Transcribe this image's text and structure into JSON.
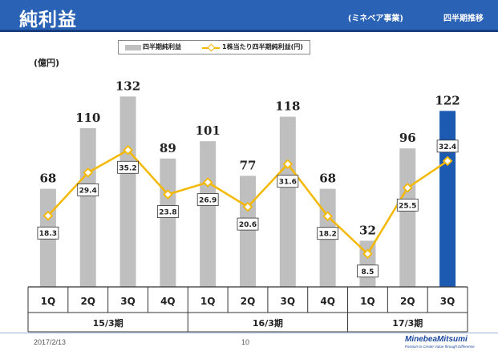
{
  "header": {
    "title": "純利益",
    "segment": "(ミネベア事業)",
    "trend": "四半期推移"
  },
  "unit": "(億円)",
  "legend": {
    "bar_label": "四半期純利益",
    "line_label": "1株当たり四半期純利益(円)"
  },
  "colors": {
    "bar": "#bfbfbf",
    "bar_highlight": "#1c5ab2",
    "line": "#f5b800",
    "header": "#2a62b6"
  },
  "chart_data": {
    "type": "bar",
    "title": "純利益",
    "ylabel": "(億円)",
    "categories": [
      "1Q",
      "2Q",
      "3Q",
      "4Q",
      "1Q",
      "2Q",
      "3Q",
      "4Q",
      "1Q",
      "2Q",
      "3Q"
    ],
    "groups": [
      {
        "label": "15/3期",
        "count": 4
      },
      {
        "label": "16/3期",
        "count": 4
      },
      {
        "label": "17/3期",
        "count": 3
      }
    ],
    "highlight_index": 10,
    "series": [
      {
        "name": "四半期純利益",
        "type": "bar",
        "values": [
          68,
          110,
          132,
          89,
          101,
          77,
          118,
          68,
          32,
          96,
          122
        ]
      },
      {
        "name": "1株当たり四半期純利益(円)",
        "type": "line",
        "values": [
          18.3,
          29.4,
          35.2,
          23.8,
          26.9,
          20.6,
          31.6,
          18.2,
          8.5,
          25.5,
          32.4
        ]
      }
    ],
    "ylim": [
      0,
      140
    ],
    "line_ylim": [
      0,
      50
    ],
    "grid": false,
    "legend_position": "top-center"
  },
  "footer": {
    "date": "2017/2/13",
    "page": "10",
    "logo": "MinebeaMitsumi",
    "logo_tagline": "Passion to Create Value through Difference"
  }
}
